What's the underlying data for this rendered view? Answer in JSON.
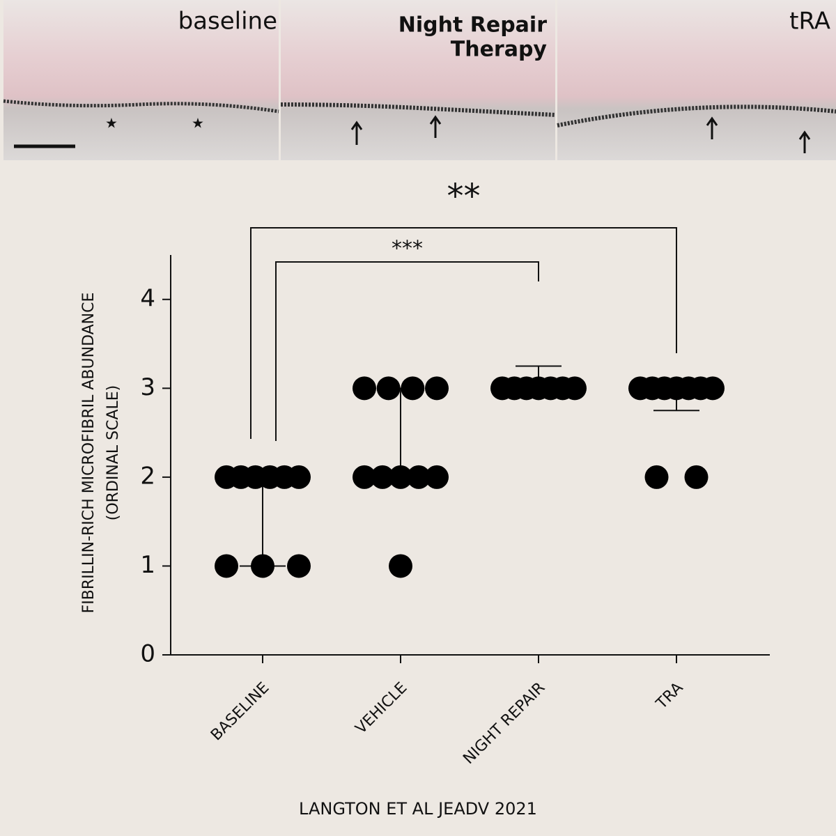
{
  "panels": [
    {
      "lines": [
        "baseline"
      ]
    },
    {
      "lines": [
        "Night Repair",
        "Therapy"
      ]
    },
    {
      "lines": [
        "tRA"
      ]
    }
  ],
  "chart_data": {
    "type": "dot",
    "categories": [
      "BASELINE",
      "VEHICLE",
      "NIGHT REPAIR",
      "TRA"
    ],
    "values": [
      [
        2,
        2,
        2,
        2,
        2,
        2,
        1,
        1,
        1
      ],
      [
        3,
        3,
        3,
        3,
        2,
        2,
        2,
        2,
        2,
        1
      ],
      [
        3,
        3,
        3,
        3,
        3,
        3,
        3
      ],
      [
        3,
        3,
        3,
        3,
        3,
        3,
        3,
        2,
        2
      ]
    ],
    "error_bars": [
      {
        "low": 1,
        "high": 2
      },
      {
        "low": 2,
        "high": 3
      },
      {
        "low": 3,
        "high": 3.25
      },
      {
        "low": 2.75,
        "high": 3
      }
    ],
    "color": "#000000",
    "ylim": [
      0,
      4.5
    ],
    "yticks": [
      0,
      1,
      2,
      3,
      4
    ],
    "y_label": [
      "FIBRILLIN-RICH MICROFIBRIL ABUNDANCE",
      "(ORDINAL SCALE)"
    ],
    "significance": [
      {
        "text": "**",
        "groups": [
          "BASELINE",
          "TRA"
        ]
      },
      {
        "text": "***",
        "groups": [
          "BASELINE",
          "NIGHT REPAIR"
        ]
      }
    ],
    "source": "LANGTON ET AL JEADV 2021"
  }
}
